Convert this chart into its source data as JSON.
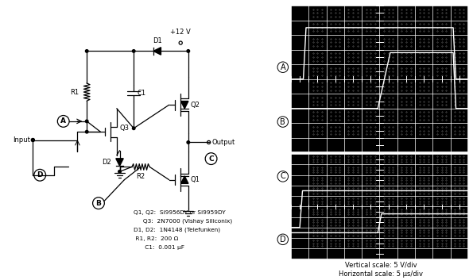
{
  "bg_color": "#ffffff",
  "scope_bg": "#000000",
  "scope_grid_color": "#ffffff",
  "scope_signal_color": "#ffffff",
  "component_labels": [
    "Q1, Q2:  Si9956DY or Si9959DY",
    "     Q3:  2N7000 (Vishay Siliconix)",
    "D1, D2:  1N4148 (Telefunken)",
    " R1, R2:  200 Ω",
    "      C1:  0.001 μF"
  ],
  "scale_text1": "Vertical scale: 5 V/div",
  "scale_text2": "Horizontal scale: 5 μs/div",
  "labels": {
    "plus12V": "+12 V",
    "input": "Input",
    "output": "Output",
    "D1": "D1",
    "D2": "D2",
    "Q1": "Q1",
    "Q2": "Q2",
    "Q3": "Q3",
    "R1": "R1",
    "R2": "R2",
    "C1": "C1",
    "A": "A",
    "B": "B",
    "C": "C",
    "D": "D"
  },
  "scope1_A": {
    "x": [
      0,
      0.7,
      0.85,
      9.15,
      9.3,
      10
    ],
    "y": [
      5.0,
      5.0,
      8.5,
      8.5,
      5.0,
      5.0
    ]
  },
  "scope1_B": {
    "x": [
      0,
      4.9,
      5.6,
      9.15,
      9.3,
      10
    ],
    "y": [
      3.0,
      3.0,
      6.8,
      6.8,
      3.0,
      3.0
    ]
  },
  "scope2_C": {
    "x": [
      0,
      0.5,
      0.65,
      10
    ],
    "y": [
      3.0,
      3.0,
      6.5,
      6.5
    ]
  },
  "scope2_D": {
    "x": [
      0,
      4.9,
      5.1,
      10
    ],
    "y": [
      2.5,
      2.5,
      4.3,
      4.3
    ]
  }
}
